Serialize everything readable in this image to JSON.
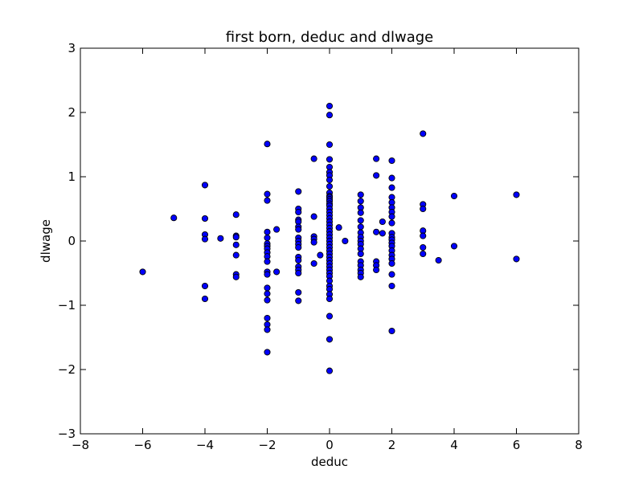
{
  "chart_data": {
    "type": "scatter",
    "title": "first born, deduc and dlwage",
    "xlabel": "deduc",
    "ylabel": "dlwage",
    "xlim": [
      -8,
      8
    ],
    "ylim": [
      -3,
      3
    ],
    "xticks": [
      -8,
      -6,
      -4,
      -2,
      0,
      2,
      4,
      6,
      8
    ],
    "yticks": [
      -3,
      -2,
      -1,
      0,
      1,
      2,
      3
    ],
    "xtick_labels": [
      "−8",
      "−6",
      "−4",
      "−2",
      "0",
      "2",
      "4",
      "6",
      "8"
    ],
    "ytick_labels": [
      "−3",
      "−2",
      "−1",
      "0",
      "1",
      "2",
      "3"
    ],
    "grid": false,
    "marker_color": "#0000ff",
    "marker_edge": "#000000",
    "points": [
      [
        -6,
        -0.48
      ],
      [
        -5,
        0.36
      ],
      [
        -4,
        0.87
      ],
      [
        -4,
        0.35
      ],
      [
        -4,
        0.1
      ],
      [
        -4,
        0.03
      ],
      [
        -4,
        -0.7
      ],
      [
        -4,
        -0.9
      ],
      [
        -3.5,
        0.04
      ],
      [
        -3,
        0.41
      ],
      [
        -3,
        0.08
      ],
      [
        -3,
        0.06
      ],
      [
        -3,
        -0.06
      ],
      [
        -3,
        -0.22
      ],
      [
        -3,
        -0.52
      ],
      [
        -3,
        -0.56
      ],
      [
        -2,
        1.51
      ],
      [
        -2,
        0.73
      ],
      [
        -2,
        0.63
      ],
      [
        -2,
        0.14
      ],
      [
        -2,
        0.05
      ],
      [
        -2,
        -0.04
      ],
      [
        -2,
        -0.08
      ],
      [
        -2,
        -0.12
      ],
      [
        -2,
        -0.18
      ],
      [
        -2,
        -0.24
      ],
      [
        -2,
        -0.32
      ],
      [
        -2,
        -0.48
      ],
      [
        -2,
        -0.52
      ],
      [
        -2,
        -0.73
      ],
      [
        -2,
        -0.82
      ],
      [
        -2,
        -0.92
      ],
      [
        -2,
        -1.2
      ],
      [
        -2,
        -1.3
      ],
      [
        -2,
        -1.38
      ],
      [
        -2,
        -1.73
      ],
      [
        -1.7,
        0.18
      ],
      [
        -1.7,
        -0.48
      ],
      [
        -1,
        0.77
      ],
      [
        -1,
        0.5
      ],
      [
        -1,
        0.45
      ],
      [
        -1,
        0.33
      ],
      [
        -1,
        0.3
      ],
      [
        -1,
        0.22
      ],
      [
        -1,
        0.18
      ],
      [
        -1,
        0.05
      ],
      [
        -1,
        0.0
      ],
      [
        -1,
        -0.05
      ],
      [
        -1,
        -0.1
      ],
      [
        -1,
        -0.25
      ],
      [
        -1,
        -0.3
      ],
      [
        -1,
        -0.4
      ],
      [
        -1,
        -0.45
      ],
      [
        -1,
        -0.5
      ],
      [
        -1,
        -0.8
      ],
      [
        -1,
        -0.93
      ],
      [
        -0.5,
        1.28
      ],
      [
        -0.5,
        0.38
      ],
      [
        -0.5,
        0.07
      ],
      [
        -0.5,
        0.03
      ],
      [
        -0.5,
        -0.02
      ],
      [
        -0.5,
        -0.35
      ],
      [
        -0.3,
        -0.22
      ],
      [
        0,
        2.1
      ],
      [
        0,
        1.96
      ],
      [
        0,
        1.5
      ],
      [
        0,
        1.27
      ],
      [
        0,
        1.15
      ],
      [
        0,
        1.07
      ],
      [
        0,
        1.02
      ],
      [
        0,
        0.95
      ],
      [
        0,
        0.85
      ],
      [
        0,
        0.75
      ],
      [
        0,
        0.7
      ],
      [
        0,
        0.68
      ],
      [
        0,
        0.65
      ],
      [
        0,
        0.62
      ],
      [
        0,
        0.58
      ],
      [
        0,
        0.55
      ],
      [
        0,
        0.5
      ],
      [
        0,
        0.45
      ],
      [
        0,
        0.4
      ],
      [
        0,
        0.35
      ],
      [
        0,
        0.3
      ],
      [
        0,
        0.25
      ],
      [
        0,
        0.2
      ],
      [
        0,
        0.15
      ],
      [
        0,
        0.1
      ],
      [
        0,
        0.05
      ],
      [
        0,
        0.0
      ],
      [
        0,
        -0.05
      ],
      [
        0,
        -0.1
      ],
      [
        0,
        -0.15
      ],
      [
        0,
        -0.2
      ],
      [
        0,
        -0.25
      ],
      [
        0,
        -0.3
      ],
      [
        0,
        -0.35
      ],
      [
        0,
        -0.4
      ],
      [
        0,
        -0.45
      ],
      [
        0,
        -0.5
      ],
      [
        0,
        -0.55
      ],
      [
        0,
        -0.62
      ],
      [
        0,
        -0.7
      ],
      [
        0,
        -0.75
      ],
      [
        0,
        -0.83
      ],
      [
        0,
        -0.9
      ],
      [
        0,
        -1.17
      ],
      [
        0,
        -1.53
      ],
      [
        0,
        -2.02
      ],
      [
        0.3,
        0.21
      ],
      [
        0.5,
        0.0
      ],
      [
        1,
        0.72
      ],
      [
        1,
        0.62
      ],
      [
        1,
        0.52
      ],
      [
        1,
        0.44
      ],
      [
        1,
        0.32
      ],
      [
        1,
        0.22
      ],
      [
        1,
        0.13
      ],
      [
        1,
        0.06
      ],
      [
        1,
        0.0
      ],
      [
        1,
        -0.05
      ],
      [
        1,
        -0.12
      ],
      [
        1,
        -0.2
      ],
      [
        1,
        -0.32
      ],
      [
        1,
        -0.38
      ],
      [
        1,
        -0.45
      ],
      [
        1,
        -0.5
      ],
      [
        1,
        -0.56
      ],
      [
        1.5,
        1.28
      ],
      [
        1.5,
        1.02
      ],
      [
        1.5,
        0.14
      ],
      [
        1.5,
        -0.32
      ],
      [
        1.5,
        -0.38
      ],
      [
        1.5,
        -0.45
      ],
      [
        1.7,
        0.3
      ],
      [
        1.7,
        0.12
      ],
      [
        2,
        1.25
      ],
      [
        2,
        0.98
      ],
      [
        2,
        0.83
      ],
      [
        2,
        0.68
      ],
      [
        2,
        0.6
      ],
      [
        2,
        0.52
      ],
      [
        2,
        0.45
      ],
      [
        2,
        0.38
      ],
      [
        2,
        0.28
      ],
      [
        2,
        0.12
      ],
      [
        2,
        0.06
      ],
      [
        2,
        0.02
      ],
      [
        2,
        -0.03
      ],
      [
        2,
        -0.08
      ],
      [
        2,
        -0.15
      ],
      [
        2,
        -0.22
      ],
      [
        2,
        -0.28
      ],
      [
        2,
        -0.35
      ],
      [
        2,
        -0.52
      ],
      [
        2,
        -0.7
      ],
      [
        2,
        -1.4
      ],
      [
        3,
        1.67
      ],
      [
        3,
        0.57
      ],
      [
        3,
        0.5
      ],
      [
        3,
        0.16
      ],
      [
        3,
        0.08
      ],
      [
        3,
        -0.1
      ],
      [
        3,
        -0.2
      ],
      [
        3.5,
        -0.3
      ],
      [
        4,
        0.7
      ],
      [
        4,
        -0.08
      ],
      [
        6,
        0.72
      ],
      [
        6,
        -0.28
      ]
    ]
  }
}
